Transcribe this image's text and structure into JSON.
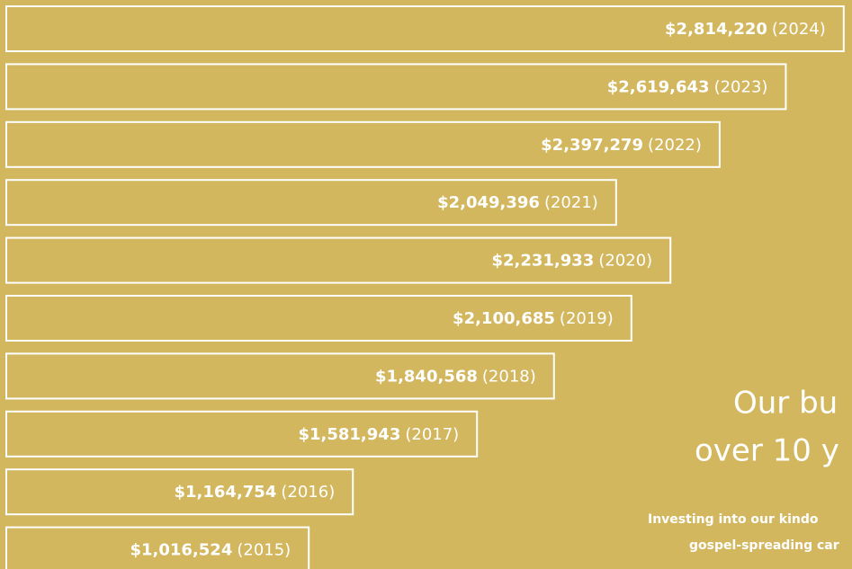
{
  "chart_data": {
    "type": "hbar",
    "categories": [
      "(2024)",
      "(2023)",
      "(2022)",
      "(2021)",
      "(2020)",
      "(2019)",
      "(2018)",
      "(2017)",
      "(2016)",
      "(2015)"
    ],
    "values": [
      2814220,
      2619643,
      2397279,
      2049396,
      2231933,
      2100685,
      1840568,
      1581943,
      1164754,
      1016524
    ],
    "value_labels": [
      "$2,814,220",
      "$2,619,643",
      "$2,397,279",
      "$2,049,396",
      "$2,231,933",
      "$2,100,685",
      "$1,840,568",
      "$1,581,943",
      "$1,164,754",
      "$1,016,524"
    ],
    "xlim": [
      0,
      2830000
    ],
    "color": "#ffffff",
    "heading": [
      "Our bu",
      "over 10 y"
    ],
    "subtext": [
      "Investing into our kindo",
      "gospel-spreading car"
    ]
  }
}
